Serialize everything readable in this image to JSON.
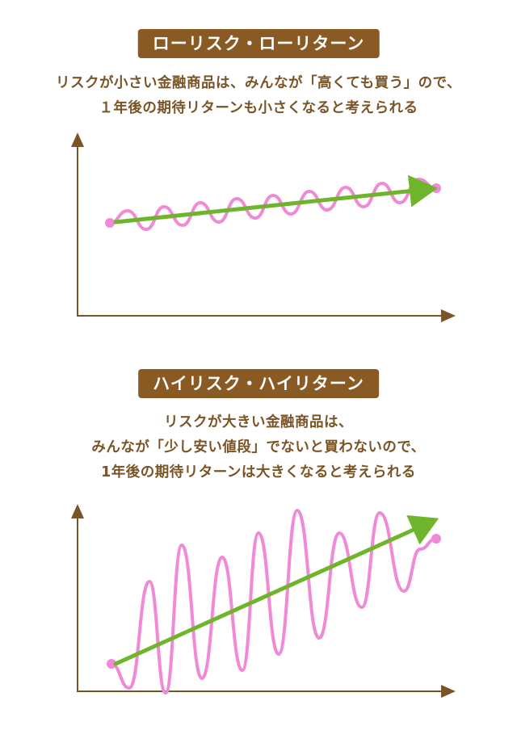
{
  "colors": {
    "badge_bg": "#8a5a24",
    "text": "#7a5426",
    "axis": "#7a5426",
    "wave": "#f08ad6",
    "arrow": "#6fb52c"
  },
  "low_risk": {
    "title": "ローリスク・ローリターン",
    "lines": [
      "リスクが小さい金融商品は、みんなが「高くても買う」ので、",
      "１年後の期待リターンも小さくなると考えられる"
    ]
  },
  "high_risk": {
    "title": "ハイリスク・ハイリターン",
    "lines": [
      "リスクが大きい金融商品は、",
      "みんなが「少し安い値段」でないと買わないので、",
      "1年後の期待リターンは大きくなると考えられる"
    ]
  }
}
